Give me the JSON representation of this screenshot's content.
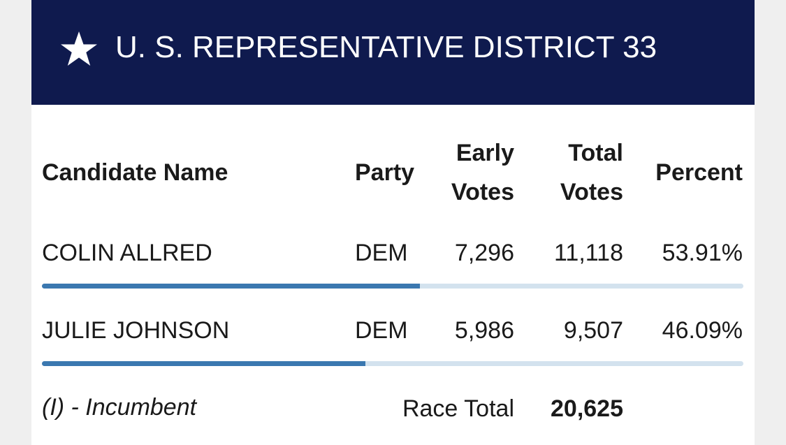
{
  "header": {
    "title": "U. S. REPRESENTATIVE DISTRICT 33"
  },
  "table": {
    "columns": {
      "candidate": "Candidate Name",
      "party": "Party",
      "early": [
        "Early",
        "Votes"
      ],
      "total": [
        "Total",
        "Votes"
      ],
      "percent": "Percent"
    },
    "rows": [
      {
        "name": "COLIN ALLRED",
        "party": "DEM",
        "early": "7,296",
        "total": "11,118",
        "percent": {
          "value": 53.91,
          "label": "53.91%"
        }
      },
      {
        "name": "JULIE JOHNSON",
        "party": "DEM",
        "early": "5,986",
        "total": "9,507",
        "percent": {
          "value": 46.09,
          "label": "46.09%"
        }
      }
    ],
    "footer": {
      "note": "(I) - Incumbent",
      "race_total_label": "Race Total",
      "race_total": "20,625"
    }
  }
}
